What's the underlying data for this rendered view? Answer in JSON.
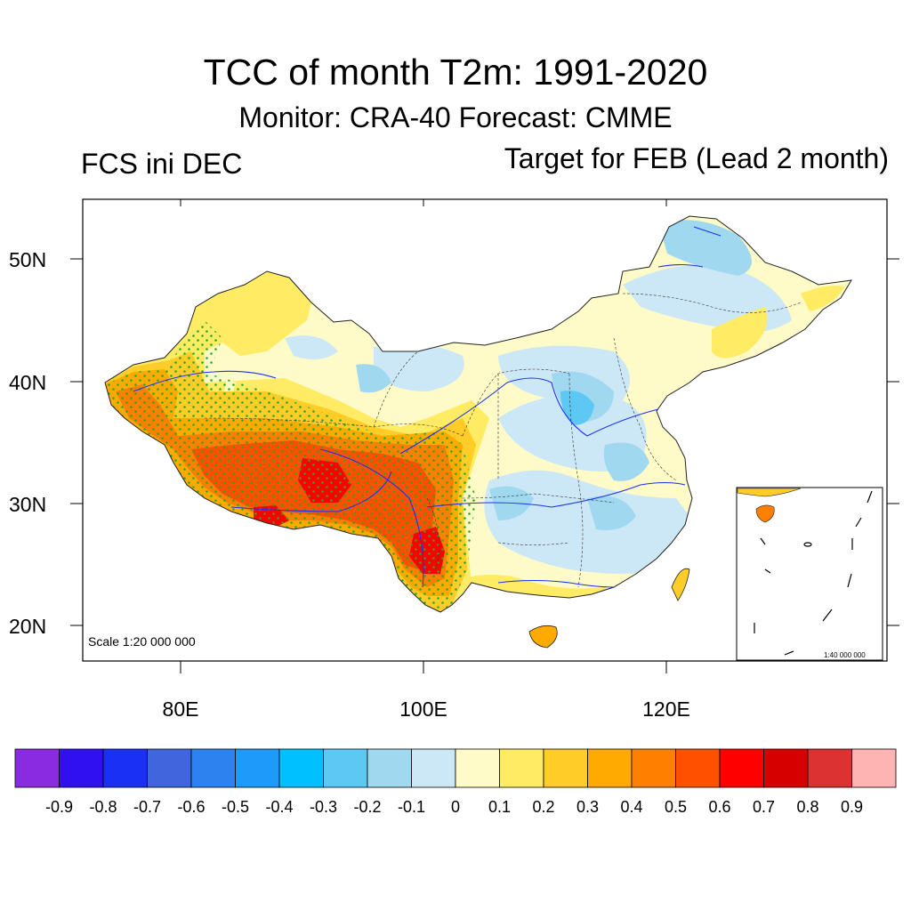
{
  "title": "TCC of month T2m: 1991-2020",
  "subtitle": "Monitor: CRA-40   Forecast: CMME",
  "left_label": "FCS ini DEC",
  "right_label": "Target for FEB (Lead 2 month)",
  "scale_main": "Scale 1:20 000 000",
  "scale_inset": "1:40 000 000",
  "lat_labels": [
    "50N",
    "40N",
    "30N",
    "20N"
  ],
  "lon_labels": [
    "80E",
    "100E",
    "120E"
  ],
  "colorbar": {
    "colors": [
      "#8a2be2",
      "#3010f0",
      "#1a30f5",
      "#4165dc",
      "#2d82f0",
      "#1e9bfa",
      "#00c0ff",
      "#5ec8f4",
      "#a0d8f0",
      "#cce8f6",
      "#fffbc8",
      "#ffeb64",
      "#ffcc28",
      "#ffaa00",
      "#ff8000",
      "#ff5000",
      "#ff0000",
      "#d70000",
      "#dc3232",
      "#ffb4b4"
    ],
    "labels": [
      "-0.9",
      "-0.8",
      "-0.7",
      "-0.6",
      "-0.5",
      "-0.4",
      "-0.3",
      "-0.2",
      "-0.1",
      "0",
      "0.1",
      "0.2",
      "0.3",
      "0.4",
      "0.5",
      "0.6",
      "0.7",
      "0.8",
      "0.9"
    ]
  },
  "map_colors": {
    "neutral": "#fffbc8",
    "light_blue": "#cce8f6",
    "mid_blue": "#a0d8f0",
    "blue": "#5ec8f4",
    "light_yellow": "#ffeb64",
    "gold": "#ffcc28",
    "orange": "#ffaa00",
    "dark_orange": "#ff8000",
    "red_orange": "#ff5000",
    "red": "#ff0000",
    "river": "#1a30f5",
    "stipple": "#22aa22"
  }
}
